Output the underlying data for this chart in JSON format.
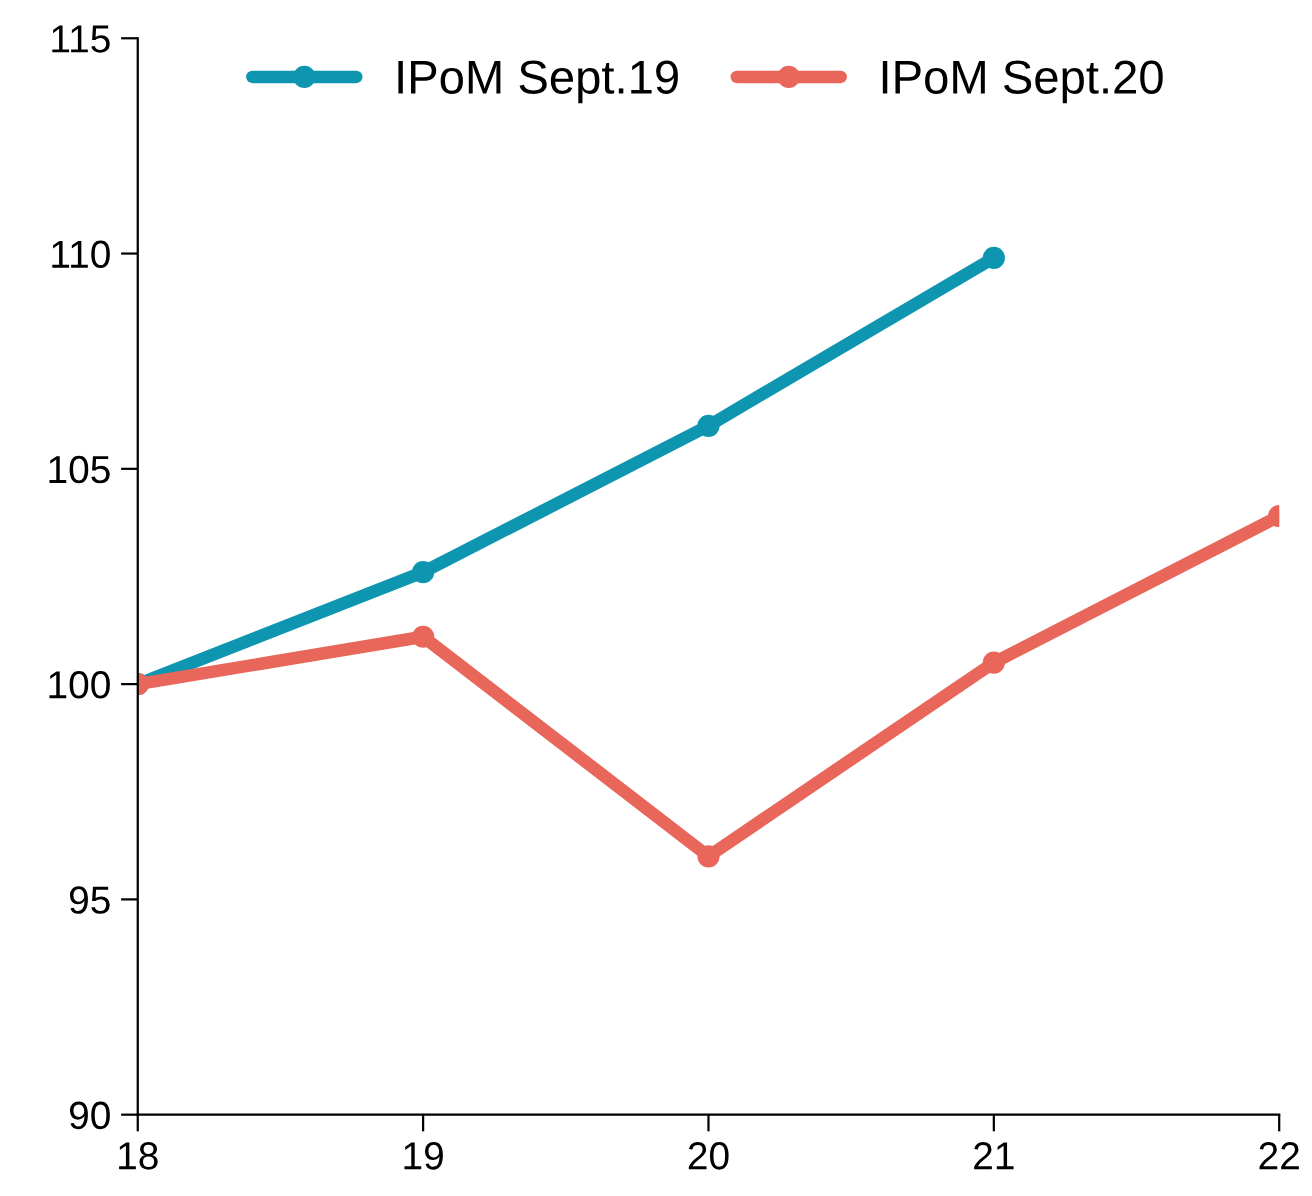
{
  "chart_data": {
    "type": "line",
    "x": [
      18,
      19,
      20,
      21,
      22
    ],
    "series": [
      {
        "name": "IPoM Sept.19",
        "color": "#0e96b0",
        "values": [
          100,
          102.6,
          106.0,
          109.9,
          null
        ]
      },
      {
        "name": "IPoM Sept.20",
        "color": "#e8665a",
        "values": [
          100,
          101.1,
          96.0,
          100.5,
          103.9
        ]
      }
    ],
    "xlim": [
      18,
      22
    ],
    "xticks": [
      18,
      19,
      20,
      21,
      22
    ],
    "ylim": [
      90,
      115
    ],
    "yticks": [
      90,
      95,
      100,
      105,
      110,
      115
    ],
    "grid": false,
    "legend": "top",
    "marker": "circle",
    "line_style": "solid"
  }
}
